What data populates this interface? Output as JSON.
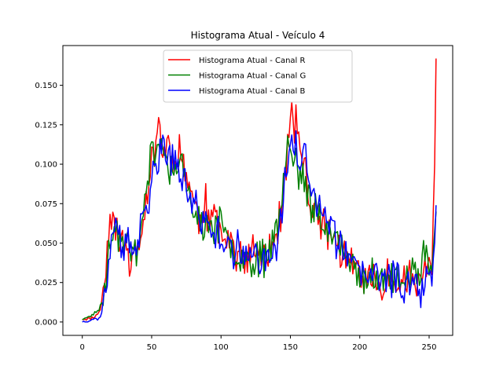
{
  "chart_data": {
    "type": "line",
    "title": "Histograma Atual - Veículo 4",
    "xlabel": "",
    "ylabel": "",
    "xlim": [
      -14,
      267
    ],
    "ylim": [
      -0.0085,
      0.1752
    ],
    "x_ticks": [
      0,
      50,
      100,
      150,
      200,
      250
    ],
    "y_ticks": [
      0.0,
      0.025,
      0.05,
      0.075,
      0.1,
      0.125,
      0.15
    ],
    "y_tick_labels": [
      "0.000",
      "0.025",
      "0.050",
      "0.075",
      "0.100",
      "0.125",
      "0.150"
    ],
    "grid": false,
    "legend_position": "upper center",
    "colors": {
      "R": "#ff0000",
      "G": "#008000",
      "B": "#0000ff"
    },
    "series": [
      {
        "name": "Histograma Atual - Canal R",
        "color": "#ff0000",
        "anchors": [
          [
            0,
            0.002
          ],
          [
            5,
            0.002
          ],
          [
            10,
            0.004
          ],
          [
            13,
            0.008
          ],
          [
            17,
            0.03
          ],
          [
            19,
            0.06
          ],
          [
            20,
            0.077
          ],
          [
            22,
            0.058
          ],
          [
            25,
            0.062
          ],
          [
            28,
            0.045
          ],
          [
            31,
            0.05
          ],
          [
            35,
            0.038
          ],
          [
            40,
            0.048
          ],
          [
            43,
            0.055
          ],
          [
            45,
            0.07
          ],
          [
            48,
            0.09
          ],
          [
            52,
            0.11
          ],
          [
            55,
            0.13
          ],
          [
            58,
            0.105
          ],
          [
            62,
            0.115
          ],
          [
            65,
            0.1
          ],
          [
            70,
            0.11
          ],
          [
            75,
            0.095
          ],
          [
            78,
            0.085
          ],
          [
            82,
            0.07
          ],
          [
            85,
            0.065
          ],
          [
            88,
            0.08
          ],
          [
            92,
            0.06
          ],
          [
            95,
            0.07
          ],
          [
            98,
            0.065
          ],
          [
            100,
            0.06
          ],
          [
            105,
            0.055
          ],
          [
            110,
            0.045
          ],
          [
            115,
            0.04
          ],
          [
            120,
            0.038
          ],
          [
            125,
            0.045
          ],
          [
            130,
            0.04
          ],
          [
            135,
            0.05
          ],
          [
            140,
            0.055
          ],
          [
            143,
            0.065
          ],
          [
            146,
            0.09
          ],
          [
            148,
            0.11
          ],
          [
            150,
            0.125
          ],
          [
            152,
            0.13
          ],
          [
            155,
            0.12
          ],
          [
            158,
            0.11
          ],
          [
            160,
            0.1
          ],
          [
            163,
            0.08
          ],
          [
            166,
            0.07
          ],
          [
            170,
            0.065
          ],
          [
            175,
            0.06
          ],
          [
            180,
            0.055
          ],
          [
            185,
            0.048
          ],
          [
            190,
            0.04
          ],
          [
            195,
            0.035
          ],
          [
            200,
            0.03
          ],
          [
            205,
            0.028
          ],
          [
            210,
            0.026
          ],
          [
            215,
            0.025
          ],
          [
            220,
            0.03
          ],
          [
            225,
            0.028
          ],
          [
            230,
            0.025
          ],
          [
            235,
            0.028
          ],
          [
            240,
            0.025
          ],
          [
            245,
            0.03
          ],
          [
            250,
            0.03
          ],
          [
            252,
            0.04
          ],
          [
            254,
            0.1
          ],
          [
            255,
            0.167
          ]
        ],
        "noise": 0.011,
        "seed": 11
      },
      {
        "name": "Histograma Atual - Canal G",
        "color": "#008000",
        "anchors": [
          [
            0,
            0.002
          ],
          [
            5,
            0.003
          ],
          [
            8,
            0.005
          ],
          [
            12,
            0.008
          ],
          [
            15,
            0.015
          ],
          [
            18,
            0.035
          ],
          [
            21,
            0.055
          ],
          [
            24,
            0.06
          ],
          [
            28,
            0.05
          ],
          [
            32,
            0.052
          ],
          [
            36,
            0.048
          ],
          [
            40,
            0.05
          ],
          [
            43,
            0.06
          ],
          [
            45,
            0.07
          ],
          [
            47,
            0.08
          ],
          [
            49,
            0.1
          ],
          [
            50,
            0.12
          ],
          [
            53,
            0.1
          ],
          [
            57,
            0.11
          ],
          [
            62,
            0.1
          ],
          [
            66,
            0.09
          ],
          [
            70,
            0.1
          ],
          [
            75,
            0.085
          ],
          [
            80,
            0.07
          ],
          [
            85,
            0.065
          ],
          [
            90,
            0.06
          ],
          [
            95,
            0.062
          ],
          [
            100,
            0.058
          ],
          [
            105,
            0.05
          ],
          [
            110,
            0.045
          ],
          [
            115,
            0.042
          ],
          [
            120,
            0.04
          ],
          [
            125,
            0.045
          ],
          [
            130,
            0.04
          ],
          [
            135,
            0.05
          ],
          [
            140,
            0.06
          ],
          [
            143,
            0.07
          ],
          [
            146,
            0.1
          ],
          [
            148,
            0.11
          ],
          [
            150,
            0.105
          ],
          [
            153,
            0.1
          ],
          [
            156,
            0.095
          ],
          [
            160,
            0.09
          ],
          [
            163,
            0.08
          ],
          [
            166,
            0.07
          ],
          [
            170,
            0.068
          ],
          [
            175,
            0.065
          ],
          [
            180,
            0.055
          ],
          [
            185,
            0.048
          ],
          [
            190,
            0.04
          ],
          [
            195,
            0.035
          ],
          [
            200,
            0.032
          ],
          [
            205,
            0.03
          ],
          [
            210,
            0.028
          ],
          [
            215,
            0.028
          ],
          [
            220,
            0.03
          ],
          [
            225,
            0.027
          ],
          [
            230,
            0.028
          ],
          [
            235,
            0.025
          ],
          [
            240,
            0.03
          ],
          [
            245,
            0.04
          ],
          [
            250,
            0.035
          ],
          [
            253,
            0.045
          ],
          [
            255,
            0.07
          ]
        ],
        "noise": 0.011,
        "seed": 23
      },
      {
        "name": "Histograma Atual - Canal B",
        "color": "#0000ff",
        "anchors": [
          [
            0,
            0.0
          ],
          [
            5,
            0.001
          ],
          [
            8,
            0.002
          ],
          [
            12,
            0.002
          ],
          [
            15,
            0.008
          ],
          [
            18,
            0.025
          ],
          [
            21,
            0.045
          ],
          [
            24,
            0.058
          ],
          [
            28,
            0.05
          ],
          [
            32,
            0.048
          ],
          [
            36,
            0.045
          ],
          [
            40,
            0.05
          ],
          [
            43,
            0.06
          ],
          [
            45,
            0.065
          ],
          [
            48,
            0.07
          ],
          [
            50,
            0.09
          ],
          [
            53,
            0.1
          ],
          [
            56,
            0.105
          ],
          [
            60,
            0.11
          ],
          [
            65,
            0.1
          ],
          [
            70,
            0.095
          ],
          [
            75,
            0.085
          ],
          [
            80,
            0.075
          ],
          [
            85,
            0.065
          ],
          [
            90,
            0.06
          ],
          [
            95,
            0.058
          ],
          [
            100,
            0.055
          ],
          [
            105,
            0.05
          ],
          [
            110,
            0.045
          ],
          [
            115,
            0.042
          ],
          [
            120,
            0.04
          ],
          [
            125,
            0.045
          ],
          [
            130,
            0.04
          ],
          [
            135,
            0.045
          ],
          [
            140,
            0.05
          ],
          [
            143,
            0.06
          ],
          [
            146,
            0.085
          ],
          [
            148,
            0.1
          ],
          [
            151,
            0.115
          ],
          [
            155,
            0.11
          ],
          [
            158,
            0.105
          ],
          [
            162,
            0.1
          ],
          [
            166,
            0.08
          ],
          [
            170,
            0.07
          ],
          [
            175,
            0.065
          ],
          [
            180,
            0.06
          ],
          [
            185,
            0.05
          ],
          [
            190,
            0.04
          ],
          [
            195,
            0.035
          ],
          [
            200,
            0.03
          ],
          [
            205,
            0.03
          ],
          [
            210,
            0.028
          ],
          [
            215,
            0.028
          ],
          [
            220,
            0.03
          ],
          [
            225,
            0.028
          ],
          [
            230,
            0.026
          ],
          [
            235,
            0.025
          ],
          [
            240,
            0.025
          ],
          [
            245,
            0.02
          ],
          [
            250,
            0.025
          ],
          [
            252,
            0.03
          ],
          [
            254,
            0.05
          ],
          [
            255,
            0.074
          ]
        ],
        "noise": 0.011,
        "seed": 37
      }
    ]
  }
}
